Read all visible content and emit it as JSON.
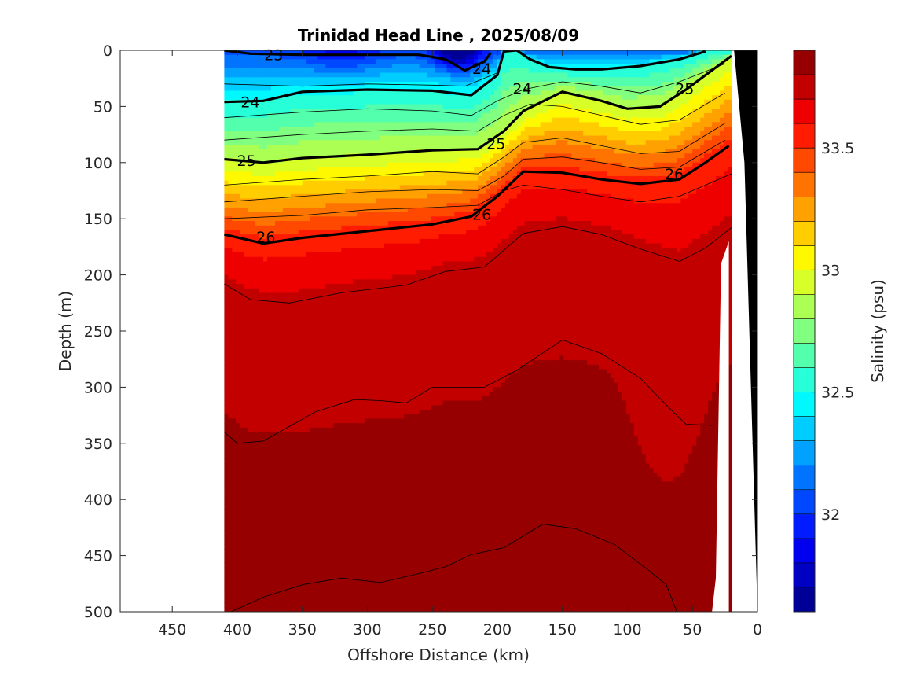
{
  "chart_data": {
    "type": "heatmap",
    "title": "Trinidad Head Line , 2025/08/09",
    "xlabel": "Offshore Distance (km)",
    "ylabel": "Depth (m)",
    "colorbar_label": "Salinity (psu)",
    "xlim": [
      490,
      0
    ],
    "ylim": [
      500,
      0
    ],
    "x_reversed": true,
    "y_reversed": true,
    "xticks": [
      450,
      400,
      350,
      300,
      250,
      200,
      150,
      100,
      50,
      0
    ],
    "yticks": [
      0,
      50,
      100,
      150,
      200,
      250,
      300,
      350,
      400,
      450,
      500
    ],
    "colorbar_ticks": [
      32,
      32.5,
      33,
      33.5
    ],
    "colorbar_range": [
      31.6,
      33.9
    ],
    "colorbar_levels": 23,
    "data_extent_km": [
      20,
      410
    ],
    "salinity_bands": [
      {
        "depth_km": [
          [
            410,
            0
          ],
          [
            20,
            0
          ]
        ],
        "salinity": 32.4
      },
      {
        "depth": 60,
        "salinity": 32.6
      },
      {
        "depth": 100,
        "salinity": 32.9
      },
      {
        "depth": 140,
        "salinity": 33.4
      },
      {
        "depth": 180,
        "salinity": 33.65
      },
      {
        "depth": 250,
        "salinity": 33.75
      },
      {
        "depth": 500,
        "salinity": 33.85
      }
    ],
    "contour_labels": [
      {
        "text": "23",
        "x": 372,
        "y": 4
      },
      {
        "text": "24",
        "x": 181,
        "y": 34
      },
      {
        "text": "24",
        "x": 212,
        "y": 16
      },
      {
        "text": "24",
        "x": 390,
        "y": 46
      },
      {
        "text": "25",
        "x": 393,
        "y": 98
      },
      {
        "text": "25",
        "x": 56,
        "y": 34
      },
      {
        "text": "25",
        "x": 201,
        "y": 83
      },
      {
        "text": "26",
        "x": 378,
        "y": 166
      },
      {
        "text": "26",
        "x": 212,
        "y": 146
      },
      {
        "text": "26",
        "x": 64,
        "y": 110
      }
    ],
    "isopycnals": {
      "23": [
        [
          410,
          0
        ],
        [
          390,
          3
        ],
        [
          350,
          4
        ],
        [
          300,
          4
        ],
        [
          260,
          4
        ],
        [
          240,
          8
        ],
        [
          225,
          18
        ],
        [
          210,
          10
        ],
        [
          205,
          2
        ]
      ],
      "24": [
        [
          410,
          46
        ],
        [
          380,
          45
        ],
        [
          350,
          37
        ],
        [
          300,
          35
        ],
        [
          250,
          36
        ],
        [
          220,
          40
        ],
        [
          200,
          22
        ],
        [
          195,
          1
        ],
        [
          185,
          0
        ],
        [
          175,
          8
        ],
        [
          160,
          15
        ],
        [
          140,
          17
        ],
        [
          120,
          17
        ],
        [
          90,
          14
        ],
        [
          60,
          8
        ],
        [
          40,
          1
        ]
      ],
      "25": [
        [
          410,
          97
        ],
        [
          380,
          100
        ],
        [
          350,
          96
        ],
        [
          300,
          93
        ],
        [
          250,
          89
        ],
        [
          215,
          88
        ],
        [
          195,
          72
        ],
        [
          180,
          54
        ],
        [
          150,
          37
        ],
        [
          120,
          45
        ],
        [
          100,
          52
        ],
        [
          75,
          50
        ],
        [
          55,
          35
        ],
        [
          20,
          5
        ]
      ],
      "26": [
        [
          410,
          164
        ],
        [
          380,
          172
        ],
        [
          350,
          167
        ],
        [
          300,
          161
        ],
        [
          250,
          155
        ],
        [
          220,
          148
        ],
        [
          200,
          130
        ],
        [
          180,
          108
        ],
        [
          150,
          109
        ],
        [
          120,
          115
        ],
        [
          90,
          119
        ],
        [
          60,
          115
        ],
        [
          40,
          100
        ],
        [
          22,
          85
        ]
      ]
    },
    "thin_isopycnals": [
      [
        [
          410,
          30
        ],
        [
          350,
          32
        ],
        [
          300,
          30
        ],
        [
          250,
          31
        ],
        [
          225,
          32
        ],
        [
          200,
          20
        ]
      ],
      [
        [
          410,
          60
        ],
        [
          350,
          55
        ],
        [
          300,
          52
        ],
        [
          250,
          54
        ],
        [
          220,
          58
        ],
        [
          200,
          45
        ],
        [
          180,
          35
        ],
        [
          150,
          28
        ],
        [
          120,
          32
        ],
        [
          90,
          38
        ],
        [
          60,
          28
        ],
        [
          25,
          12
        ]
      ],
      [
        [
          410,
          80
        ],
        [
          350,
          75
        ],
        [
          300,
          72
        ],
        [
          250,
          70
        ],
        [
          215,
          72
        ],
        [
          195,
          58
        ],
        [
          175,
          48
        ],
        [
          150,
          50
        ],
        [
          120,
          58
        ],
        [
          90,
          66
        ],
        [
          60,
          62
        ],
        [
          25,
          38
        ]
      ],
      [
        [
          410,
          120
        ],
        [
          350,
          115
        ],
        [
          300,
          112
        ],
        [
          250,
          108
        ],
        [
          215,
          110
        ],
        [
          195,
          95
        ],
        [
          180,
          82
        ],
        [
          150,
          78
        ],
        [
          120,
          85
        ],
        [
          90,
          92
        ],
        [
          60,
          90
        ],
        [
          25,
          65
        ]
      ],
      [
        [
          410,
          135
        ],
        [
          350,
          130
        ],
        [
          300,
          126
        ],
        [
          250,
          124
        ],
        [
          215,
          125
        ],
        [
          195,
          112
        ],
        [
          180,
          97
        ],
        [
          150,
          95
        ],
        [
          120,
          100
        ],
        [
          90,
          106
        ],
        [
          60,
          104
        ],
        [
          25,
          80
        ]
      ],
      [
        [
          410,
          150
        ],
        [
          350,
          147
        ],
        [
          300,
          142
        ],
        [
          250,
          140
        ],
        [
          215,
          138
        ],
        [
          195,
          125
        ],
        [
          180,
          120
        ],
        [
          150,
          124
        ],
        [
          120,
          130
        ],
        [
          90,
          135
        ],
        [
          60,
          130
        ],
        [
          20,
          110
        ]
      ],
      [
        [
          410,
          208
        ],
        [
          390,
          222
        ],
        [
          360,
          225
        ],
        [
          320,
          216
        ],
        [
          270,
          209
        ],
        [
          240,
          197
        ],
        [
          210,
          193
        ],
        [
          180,
          163
        ],
        [
          150,
          157
        ],
        [
          120,
          164
        ],
        [
          90,
          177
        ],
        [
          60,
          188
        ],
        [
          40,
          176
        ],
        [
          20,
          158
        ]
      ],
      [
        [
          410,
          340
        ],
        [
          400,
          350
        ],
        [
          380,
          348
        ],
        [
          340,
          322
        ],
        [
          310,
          311
        ],
        [
          290,
          312
        ],
        [
          270,
          314
        ],
        [
          250,
          300
        ],
        [
          210,
          300
        ],
        [
          185,
          285
        ],
        [
          150,
          258
        ],
        [
          120,
          270
        ],
        [
          90,
          292
        ],
        [
          70,
          316
        ],
        [
          55,
          333
        ],
        [
          35,
          334
        ]
      ],
      [
        [
          405,
          500
        ],
        [
          380,
          487
        ],
        [
          350,
          476
        ],
        [
          320,
          470
        ],
        [
          290,
          474
        ],
        [
          260,
          466
        ],
        [
          240,
          460
        ],
        [
          220,
          449
        ],
        [
          195,
          443
        ],
        [
          165,
          422
        ],
        [
          140,
          426
        ],
        [
          110,
          440
        ],
        [
          85,
          462
        ],
        [
          70,
          476
        ],
        [
          62,
          500
        ]
      ]
    ],
    "bathymetry": [
      [
        0,
        0
      ],
      [
        18,
        0
      ],
      [
        10,
        100
      ],
      [
        0,
        500
      ]
    ]
  }
}
